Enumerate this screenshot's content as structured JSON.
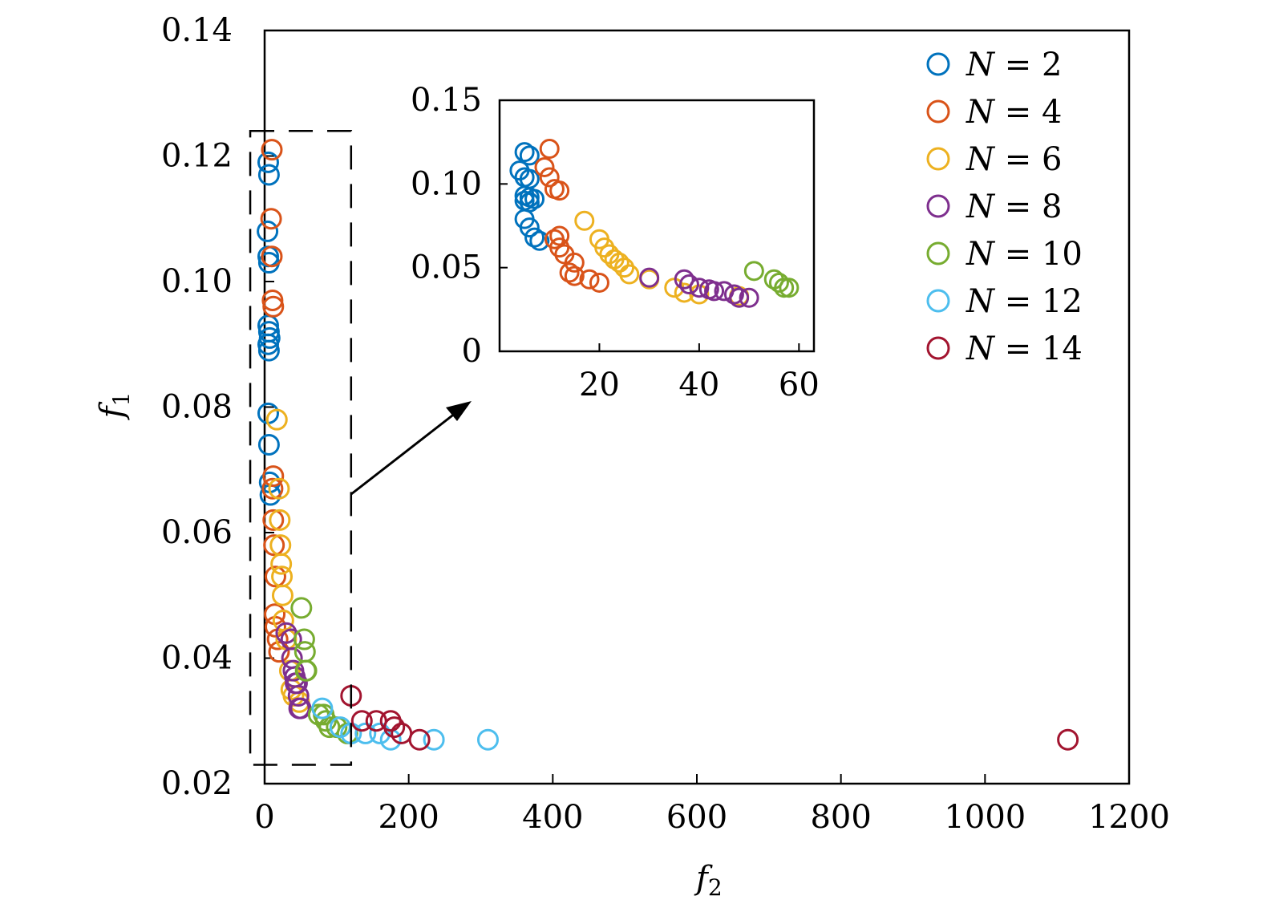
{
  "chart_data": {
    "type": "scatter",
    "xlabel": "f",
    "xlabel_sub": "2",
    "ylabel": "f",
    "ylabel_sub": "1",
    "xlim": [
      0,
      1200
    ],
    "ylim": [
      0.02,
      0.14
    ],
    "xticks": [
      0,
      200,
      400,
      600,
      800,
      1000,
      1200
    ],
    "xtick_labels": [
      "0",
      "200",
      "400",
      "600",
      "800",
      "1000",
      "1200"
    ],
    "yticks": [
      0.02,
      0.04,
      0.06,
      0.08,
      0.1,
      0.12,
      0.14
    ],
    "ytick_labels": [
      "0.02",
      "0.04",
      "0.06",
      "0.08",
      "0.10",
      "0.12",
      "0.14"
    ],
    "legend_position": "top-right",
    "zoom_box": {
      "xrange": [
        -20,
        120
      ],
      "yrange": [
        0.023,
        0.124
      ]
    },
    "series": [
      {
        "name": "N = 2",
        "label_prefix": "N",
        "label_value": "= 2",
        "color": "#0072BD",
        "points": [
          [
            5,
            0.119
          ],
          [
            6,
            0.117
          ],
          [
            4,
            0.108
          ],
          [
            5,
            0.104
          ],
          [
            6,
            0.103
          ],
          [
            5,
            0.093
          ],
          [
            6,
            0.092
          ],
          [
            7,
            0.091
          ],
          [
            5,
            0.09
          ],
          [
            6,
            0.089
          ],
          [
            5,
            0.079
          ],
          [
            6,
            0.074
          ],
          [
            7,
            0.068
          ],
          [
            8,
            0.066
          ]
        ]
      },
      {
        "name": "N = 4",
        "label_prefix": "N",
        "label_value": "= 4",
        "color": "#D95319",
        "points": [
          [
            10,
            0.121
          ],
          [
            9,
            0.11
          ],
          [
            10,
            0.104
          ],
          [
            11,
            0.097
          ],
          [
            12,
            0.096
          ],
          [
            12,
            0.069
          ],
          [
            11,
            0.067
          ],
          [
            12,
            0.062
          ],
          [
            13,
            0.058
          ],
          [
            15,
            0.053
          ],
          [
            14,
            0.047
          ],
          [
            15,
            0.045
          ],
          [
            18,
            0.043
          ],
          [
            20,
            0.041
          ]
        ]
      },
      {
        "name": "N = 6",
        "label_prefix": "N",
        "label_value": "= 6",
        "color": "#EDB120",
        "points": [
          [
            17,
            0.078
          ],
          [
            20,
            0.067
          ],
          [
            21,
            0.062
          ],
          [
            22,
            0.058
          ],
          [
            23,
            0.055
          ],
          [
            24,
            0.053
          ],
          [
            25,
            0.05
          ],
          [
            26,
            0.046
          ],
          [
            30,
            0.043
          ],
          [
            35,
            0.038
          ],
          [
            37,
            0.035
          ],
          [
            40,
            0.034
          ],
          [
            48,
            0.033
          ]
        ]
      },
      {
        "name": "N = 8",
        "label_prefix": "N",
        "label_value": "= 8",
        "color": "#7E2F8E",
        "points": [
          [
            30,
            0.044
          ],
          [
            37,
            0.043
          ],
          [
            38,
            0.04
          ],
          [
            40,
            0.038
          ],
          [
            42,
            0.037
          ],
          [
            43,
            0.036
          ],
          [
            45,
            0.036
          ],
          [
            47,
            0.034
          ],
          [
            48,
            0.032
          ],
          [
            50,
            0.032
          ]
        ]
      },
      {
        "name": "N = 10",
        "label_prefix": "N",
        "label_value": "= 10",
        "color": "#77AC30",
        "points": [
          [
            51,
            0.048
          ],
          [
            55,
            0.043
          ],
          [
            56,
            0.041
          ],
          [
            57,
            0.038
          ],
          [
            58,
            0.038
          ],
          [
            75,
            0.031
          ],
          [
            82,
            0.031
          ],
          [
            85,
            0.03
          ],
          [
            90,
            0.029
          ],
          [
            100,
            0.029
          ],
          [
            115,
            0.028
          ]
        ]
      },
      {
        "name": "N = 12",
        "label_prefix": "N",
        "label_value": "= 12",
        "color": "#4DBEEE",
        "points": [
          [
            80,
            0.032
          ],
          [
            105,
            0.029
          ],
          [
            120,
            0.028
          ],
          [
            140,
            0.028
          ],
          [
            160,
            0.028
          ],
          [
            175,
            0.027
          ],
          [
            235,
            0.027
          ],
          [
            310,
            0.027
          ]
        ]
      },
      {
        "name": "N = 14",
        "label_prefix": "N",
        "label_value": "= 14",
        "color": "#A2142F",
        "points": [
          [
            120,
            0.034
          ],
          [
            135,
            0.03
          ],
          [
            155,
            0.03
          ],
          [
            175,
            0.03
          ],
          [
            180,
            0.029
          ],
          [
            190,
            0.028
          ],
          [
            215,
            0.027
          ],
          [
            1115,
            0.027
          ]
        ]
      }
    ],
    "inset": {
      "xlim": [
        0,
        63
      ],
      "ylim": [
        0,
        0.15
      ],
      "xticks": [
        20,
        40,
        60
      ],
      "xtick_labels": [
        "20",
        "40",
        "60"
      ],
      "yticks": [
        0,
        0.05,
        0.1,
        0.15
      ],
      "ytick_labels": [
        "0",
        "0.05",
        "0.10",
        "0.15"
      ]
    }
  }
}
